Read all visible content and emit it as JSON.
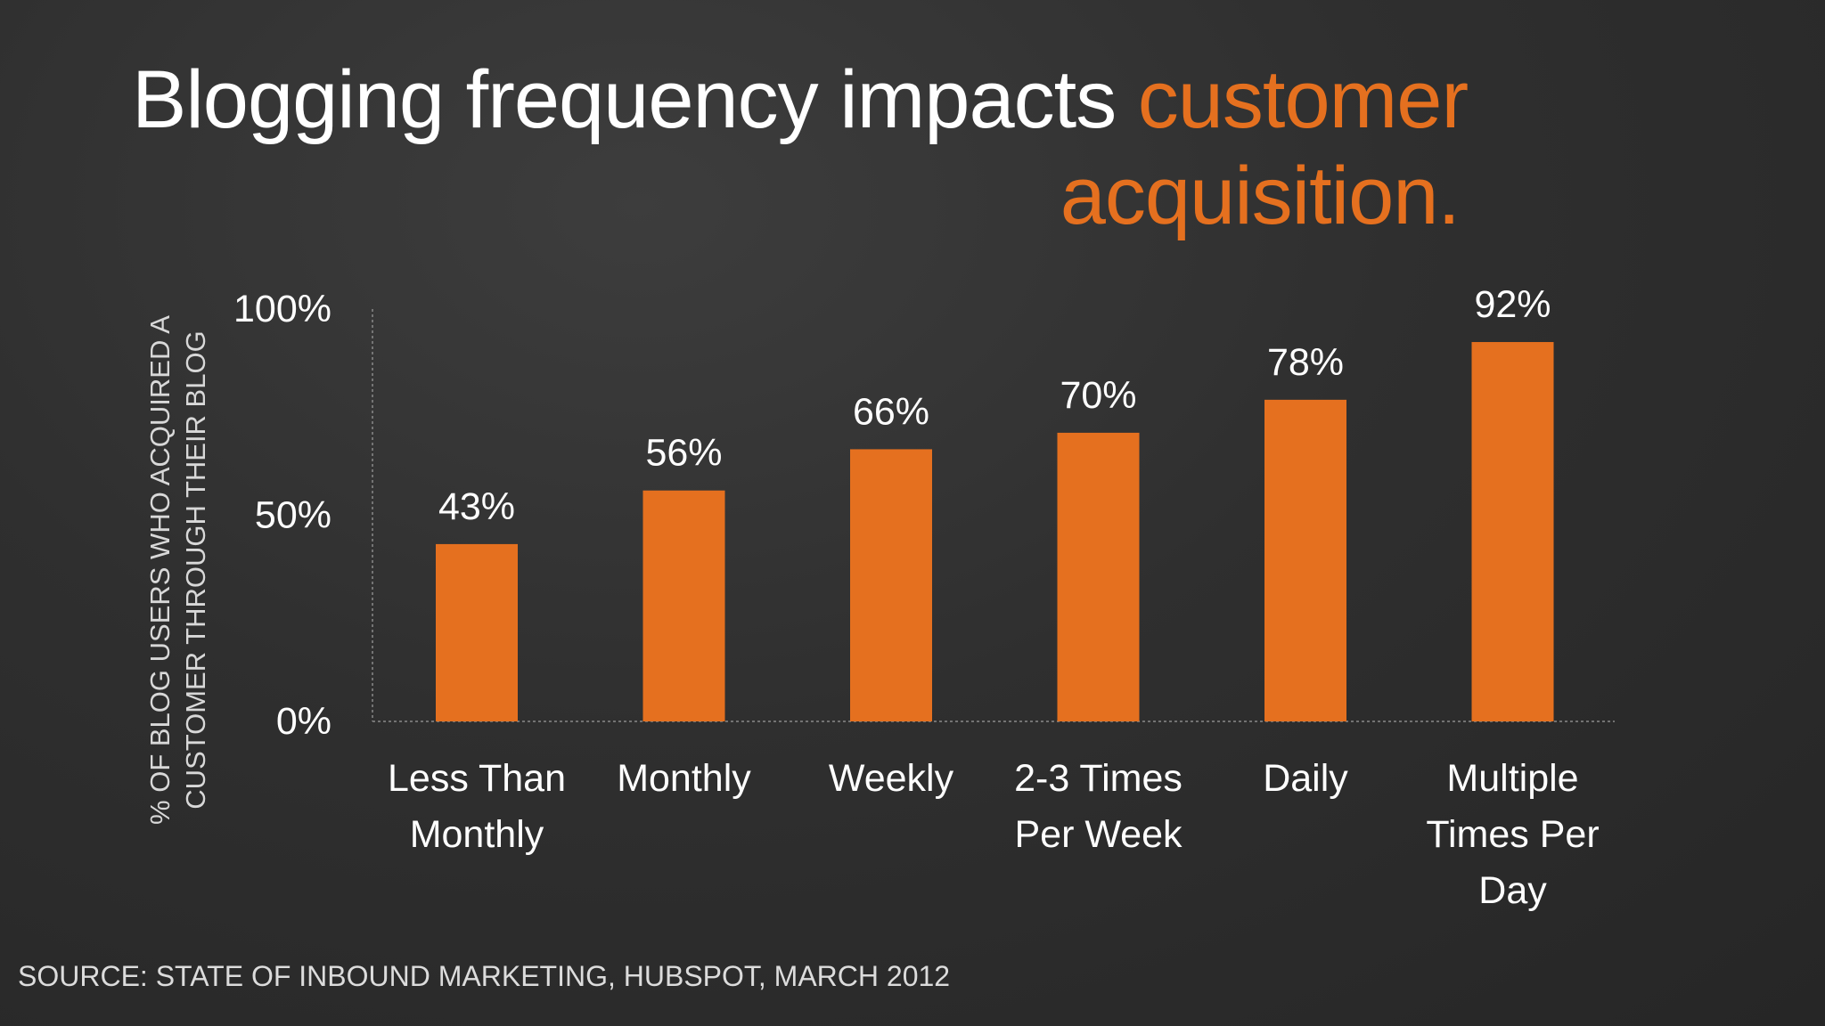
{
  "slide": {
    "title_main": "Blogging frequency impacts",
    "title_accent_1": "customer",
    "title_accent_2": "acquisition.",
    "source": "SOURCE: STATE OF INBOUND MARKETING, HUBSPOT, MARCH 2012"
  },
  "colors": {
    "background": "#2f2f2f",
    "accent": "#e5701f",
    "bar": "#e5701f",
    "text": "#ffffff"
  },
  "chart_data": {
    "type": "bar",
    "title": "Blogging frequency impacts customer acquisition.",
    "categories": [
      "Less Than Monthly",
      "Monthly",
      "Weekly",
      "2-3 Times Per Week",
      "Daily",
      "Multiple Times Per Day"
    ],
    "category_lines": [
      [
        "Less Than",
        "Monthly"
      ],
      [
        "Monthly"
      ],
      [
        "Weekly"
      ],
      [
        "2-3 Times",
        "Per Week"
      ],
      [
        "Daily"
      ],
      [
        "Multiple",
        "Times Per",
        "Day"
      ]
    ],
    "values": [
      43,
      56,
      66,
      70,
      78,
      92
    ],
    "data_labels": [
      "43%",
      "56%",
      "66%",
      "70%",
      "78%",
      "92%"
    ],
    "ylim": [
      0,
      100
    ],
    "yticks": [
      0,
      50,
      100
    ],
    "ytick_labels": [
      "0%",
      "50%",
      "100%"
    ],
    "xlabel": "",
    "ylabel_lines": [
      "% OF BLOG USERS WHO ACQUIRED A",
      "CUSTOMER THROUGH THEIR BLOG"
    ],
    "grid": false,
    "legend": "none"
  }
}
